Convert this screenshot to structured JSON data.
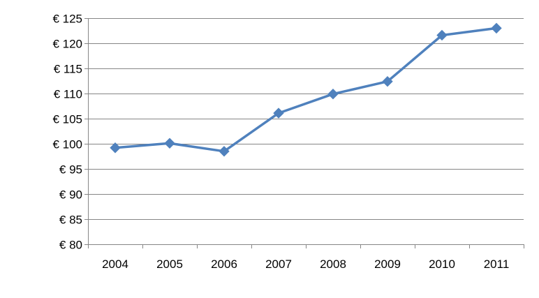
{
  "chart_data": {
    "type": "line",
    "title": "",
    "xlabel": "",
    "ylabel": "",
    "categories": [
      "2004",
      "2005",
      "2006",
      "2007",
      "2008",
      "2009",
      "2010",
      "2011"
    ],
    "series": [
      {
        "values": [
          99.2,
          100.1,
          98.5,
          106.1,
          109.9,
          112.4,
          121.6,
          123.0
        ],
        "color": "#4f81bd",
        "marker": "diamond"
      }
    ],
    "ylim": [
      80,
      125
    ],
    "ytick_step": 5,
    "y_tick_labels": [
      "€ 80",
      "€ 85",
      "€ 90",
      "€ 95",
      "€ 100",
      "€ 105",
      "€ 110",
      "€ 115",
      "€ 120",
      "€ 125"
    ],
    "grid": "horizontal",
    "legend": "none",
    "colors": {
      "gridline": "#868686",
      "axis": "#868686",
      "text": "#000000"
    }
  }
}
